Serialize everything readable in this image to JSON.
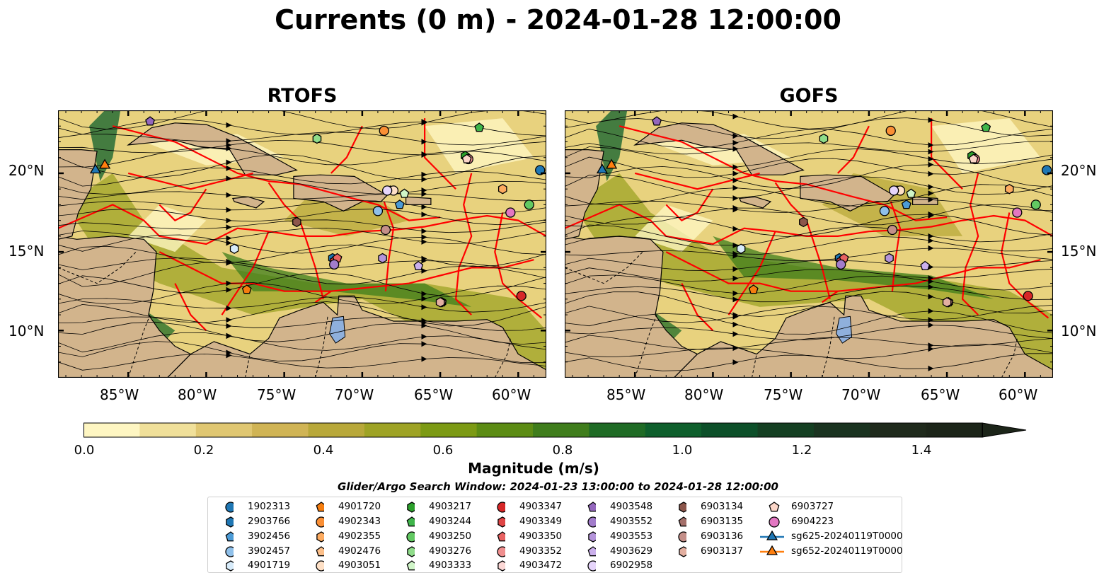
{
  "title": "Currents (0 m) - 2024-01-28 12:00:00",
  "panels": [
    {
      "title": "RTOFS"
    },
    {
      "title": "GOFS"
    }
  ],
  "axes": {
    "lon_labels": [
      "85°W",
      "80°W",
      "75°W",
      "70°W",
      "65°W",
      "60°W"
    ],
    "lat_labels": [
      "20°N",
      "15°N",
      "10°N"
    ],
    "lon_values": [
      -85,
      -80,
      -75,
      -70,
      -65,
      -60
    ],
    "lat_values": [
      20,
      15,
      10
    ],
    "lon_range": [
      -89.5,
      -58.2
    ],
    "lat_range": [
      7,
      24
    ]
  },
  "colorbar": {
    "label": "Magnitude (m/s)",
    "ticks": [
      "0.0",
      "0.2",
      "0.4",
      "0.6",
      "0.8",
      "1.0",
      "1.2",
      "1.4"
    ],
    "range": [
      0,
      1.6
    ],
    "extend": "max",
    "colors": [
      "#fef6c2",
      "#f0e09a",
      "#e0c772",
      "#d0b455",
      "#b8a83a",
      "#9ea325",
      "#7c9a14",
      "#5c8c14",
      "#3f7d1c",
      "#1f6b25",
      "#0e5f2c",
      "#0c4f29",
      "#143f22",
      "#1a3320",
      "#1f2a1c",
      "#1c2519"
    ]
  },
  "search_window": "Glider/Argo Search Window: 2024-01-23 13:00:00 to 2024-01-28 12:00:00",
  "land_color": "#d2b48c",
  "lake_color": "#8fb0dc",
  "eez_color": "#ff0000",
  "legend": [
    {
      "label": "1902313",
      "marker": "circle",
      "color": "#1f77b4"
    },
    {
      "label": "2903766",
      "marker": "hexagon",
      "color": "#1f77b4"
    },
    {
      "label": "3902456",
      "marker": "pentagon",
      "color": "#4c9bd6"
    },
    {
      "label": "3902457",
      "marker": "circle",
      "color": "#8fc0ea"
    },
    {
      "label": "4901719",
      "marker": "hexagon",
      "color": "#d7ebfa"
    },
    {
      "label": "4901720",
      "marker": "pentagon",
      "color": "#f57d0f"
    },
    {
      "label": "4902343",
      "marker": "circle",
      "color": "#fa8f35"
    },
    {
      "label": "4902355",
      "marker": "hexagon",
      "color": "#fdab60"
    },
    {
      "label": "4902476",
      "marker": "pentagon",
      "color": "#fdc08a"
    },
    {
      "label": "4903051",
      "marker": "circle",
      "color": "#fee0c6"
    },
    {
      "label": "4903217",
      "marker": "hexagon",
      "color": "#2ca02c"
    },
    {
      "label": "4903244",
      "marker": "pentagon",
      "color": "#3fb54a"
    },
    {
      "label": "4903250",
      "marker": "circle",
      "color": "#62c962"
    },
    {
      "label": "4903276",
      "marker": "hexagon",
      "color": "#8fdc8a"
    },
    {
      "label": "4903333",
      "marker": "pentagon",
      "color": "#d0f5c8"
    },
    {
      "label": "4903347",
      "marker": "circle",
      "color": "#d62728"
    },
    {
      "label": "4903349",
      "marker": "hexagon",
      "color": "#df4545"
    },
    {
      "label": "4903350",
      "marker": "pentagon",
      "color": "#e86262"
    },
    {
      "label": "4903352",
      "marker": "circle",
      "color": "#f08f8f"
    },
    {
      "label": "4903472",
      "marker": "hexagon",
      "color": "#fbd7d5"
    },
    {
      "label": "4903548",
      "marker": "pentagon",
      "color": "#9467bd"
    },
    {
      "label": "4903552",
      "marker": "circle",
      "color": "#a27ccb"
    },
    {
      "label": "4903553",
      "marker": "hexagon",
      "color": "#b494da"
    },
    {
      "label": "4903629",
      "marker": "pentagon",
      "color": "#cbb0ec"
    },
    {
      "label": "6902958",
      "marker": "circle",
      "color": "#e6d5fb"
    },
    {
      "label": "6903134",
      "marker": "hexagon",
      "color": "#8c564b"
    },
    {
      "label": "6903135",
      "marker": "pentagon",
      "color": "#a4706a"
    },
    {
      "label": "6903136",
      "marker": "circle",
      "color": "#c48f89"
    },
    {
      "label": "6903137",
      "marker": "hexagon",
      "color": "#e3afa0"
    },
    {
      "label": "6903727",
      "marker": "pentagon",
      "color": "#fbd6c8"
    },
    {
      "label": "6904223",
      "marker": "circle",
      "color": "#e377c2"
    },
    {
      "label": "sg625-20240119T0000",
      "marker": "triangle-line",
      "color": "#1f77b4"
    },
    {
      "label": "sg652-20240119T0000",
      "marker": "triangle-line",
      "color": "#ff7f0e"
    }
  ],
  "floats": [
    {
      "id": "1902313",
      "lon": -58.6,
      "lat": 20.2
    },
    {
      "id": "2903766",
      "lon": -71.9,
      "lat": 14.6
    },
    {
      "id": "3902456",
      "lon": -67.6,
      "lat": 18.0
    },
    {
      "id": "3902457",
      "lon": -69.0,
      "lat": 17.6
    },
    {
      "id": "4901719",
      "lon": -78.2,
      "lat": 15.2
    },
    {
      "id": "4901720",
      "lon": -77.4,
      "lat": 12.6
    },
    {
      "id": "4902343",
      "lon": -68.6,
      "lat": 22.7
    },
    {
      "id": "4902355",
      "lon": -61.0,
      "lat": 19.0
    },
    {
      "id": "4902476",
      "lon": -68.2,
      "lat": 18.9
    },
    {
      "id": "4903051",
      "lon": -68.0,
      "lat": 18.9
    },
    {
      "id": "4903217",
      "lon": -63.4,
      "lat": 21.1
    },
    {
      "id": "4903244",
      "lon": -62.5,
      "lat": 22.9
    },
    {
      "id": "4903250",
      "lon": -59.3,
      "lat": 18.0
    },
    {
      "id": "4903276",
      "lon": -72.9,
      "lat": 22.2
    },
    {
      "id": "4903333",
      "lon": -67.3,
      "lat": 18.7
    },
    {
      "id": "4903347",
      "lon": -59.8,
      "lat": 12.2
    },
    {
      "id": "4903349",
      "lon": -71.8,
      "lat": 14.4
    },
    {
      "id": "4903350",
      "lon": -71.6,
      "lat": 14.6
    },
    {
      "id": "4903352",
      "lon": -63.2,
      "lat": 20.9
    },
    {
      "id": "4903472",
      "lon": -64.9,
      "lat": 11.8
    },
    {
      "id": "4903548",
      "lon": -83.6,
      "lat": 23.3
    },
    {
      "id": "4903552",
      "lon": -71.8,
      "lat": 14.2
    },
    {
      "id": "4903553",
      "lon": -68.7,
      "lat": 14.6
    },
    {
      "id": "4903629",
      "lon": -66.4,
      "lat": 14.1
    },
    {
      "id": "6902958",
      "lon": -68.4,
      "lat": 18.9
    },
    {
      "id": "6903134",
      "lon": -74.2,
      "lat": 16.9
    },
    {
      "id": "6903135",
      "lon": -64.9,
      "lat": 11.8
    },
    {
      "id": "6903136",
      "lon": -68.5,
      "lat": 16.4
    },
    {
      "id": "6903137",
      "lon": -65.0,
      "lat": 11.8
    },
    {
      "id": "6903727",
      "lon": -63.3,
      "lat": 20.9
    },
    {
      "id": "6904223",
      "lon": -60.5,
      "lat": 17.5
    }
  ],
  "gliders": [
    {
      "id": "sg625-20240119T0000",
      "lon": -87.1,
      "lat": 20.2
    },
    {
      "id": "sg652-20240119T0000",
      "lon": -86.5,
      "lat": 20.5
    }
  ]
}
